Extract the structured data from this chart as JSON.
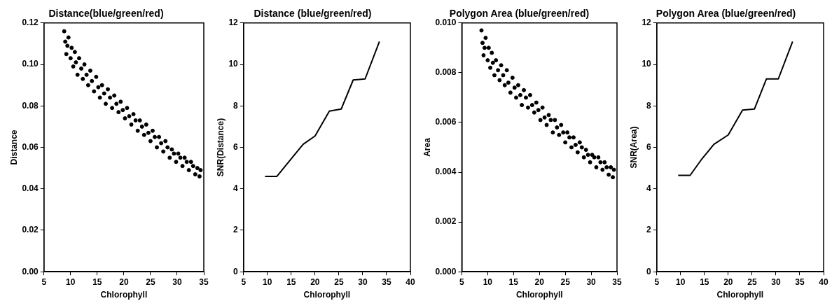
{
  "chart_data": [
    {
      "type": "scatter",
      "title": "Distance(blue/green/red)",
      "xlabel": "Chlorophyll",
      "ylabel": "Distance",
      "color": "#000000",
      "marker": "circle",
      "x": [
        8.8,
        9,
        9.2,
        9.4,
        9.6,
        10,
        10.2,
        10.5,
        10.8,
        11,
        11.3,
        11.6,
        12,
        12.3,
        12.6,
        13,
        13.3,
        13.7,
        14,
        14.4,
        14.8,
        15.2,
        15.5,
        15.9,
        16.3,
        16.6,
        17,
        17.4,
        17.8,
        18.2,
        18.6,
        19,
        19.4,
        19.8,
        20.2,
        20.6,
        21,
        21.4,
        21.8,
        22.2,
        22.6,
        23,
        23.4,
        23.8,
        24.2,
        24.6,
        25,
        25.4,
        25.8,
        26.2,
        26.6,
        27,
        27.4,
        27.8,
        28.2,
        28.6,
        29,
        29.4,
        29.8,
        30.2,
        30.6,
        31,
        31.4,
        31.8,
        32.2,
        32.6,
        33,
        33.4,
        33.8,
        34.2,
        34.4
      ],
      "values": [
        0.116,
        0.111,
        0.105,
        0.109,
        0.113,
        0.103,
        0.108,
        0.099,
        0.106,
        0.101,
        0.095,
        0.103,
        0.098,
        0.093,
        0.1,
        0.095,
        0.09,
        0.097,
        0.092,
        0.087,
        0.094,
        0.089,
        0.084,
        0.09,
        0.086,
        0.081,
        0.088,
        0.084,
        0.079,
        0.085,
        0.081,
        0.077,
        0.082,
        0.078,
        0.074,
        0.079,
        0.075,
        0.071,
        0.076,
        0.073,
        0.068,
        0.073,
        0.07,
        0.066,
        0.071,
        0.067,
        0.063,
        0.068,
        0.065,
        0.06,
        0.065,
        0.062,
        0.058,
        0.063,
        0.06,
        0.055,
        0.059,
        0.057,
        0.053,
        0.057,
        0.055,
        0.051,
        0.055,
        0.053,
        0.049,
        0.053,
        0.051,
        0.047,
        0.05,
        0.046,
        0.049
      ],
      "xlim": [
        5,
        35
      ],
      "xticks": [
        5,
        10,
        15,
        20,
        25,
        30,
        35
      ],
      "ylim": [
        0,
        0.12
      ],
      "yticks": [
        {
          "value": 0,
          "label": "0.00"
        },
        0.02,
        0.04,
        0.06,
        0.08,
        {
          "value": 0.1,
          "label": "0.10"
        },
        {
          "value": 0.12,
          "label": "0.12"
        }
      ]
    },
    {
      "type": "line",
      "title": "Distance (blue/green/red)",
      "xlabel": "Chlorophyll",
      "ylabel": "SNR(Distance)",
      "color": "#000000",
      "marker": "none",
      "line_style": "solid",
      "x": [
        9.5,
        12,
        15,
        17.5,
        20,
        23,
        25.5,
        28,
        30.5,
        33.5
      ],
      "values": [
        4.6,
        4.6,
        5.45,
        6.15,
        6.55,
        7.75,
        7.85,
        9.25,
        9.3,
        11.1
      ],
      "xlim": [
        5,
        40
      ],
      "xticks": [
        5,
        10,
        15,
        20,
        25,
        30,
        35,
        40
      ],
      "ylim": [
        0,
        12
      ],
      "yticks": [
        0,
        2,
        4,
        6,
        8,
        10,
        12
      ]
    },
    {
      "type": "scatter",
      "title": "Polygon Area (blue/green/red)",
      "xlabel": "Chlorophyll",
      "ylabel": "Area",
      "color": "#000000",
      "marker": "circle",
      "x": [
        8.8,
        9,
        9.2,
        9.4,
        9.6,
        10,
        10.2,
        10.5,
        10.8,
        11,
        11.3,
        11.6,
        12,
        12.3,
        12.6,
        13,
        13.3,
        13.7,
        14,
        14.4,
        14.8,
        15.2,
        15.5,
        15.9,
        16.3,
        16.6,
        17,
        17.4,
        17.8,
        18.2,
        18.6,
        19,
        19.4,
        19.8,
        20.2,
        20.6,
        21,
        21.4,
        21.8,
        22.2,
        22.6,
        23,
        23.4,
        23.8,
        24.2,
        24.6,
        25,
        25.4,
        25.8,
        26.2,
        26.6,
        27,
        27.4,
        27.8,
        28.2,
        28.6,
        29,
        29.4,
        29.8,
        30.2,
        30.6,
        31,
        31.4,
        31.8,
        32.2,
        32.6,
        33,
        33.4,
        33.8,
        34.2,
        34.4
      ],
      "values": [
        0.0097,
        0.0092,
        0.0087,
        0.009,
        0.0094,
        0.0085,
        0.009,
        0.0082,
        0.0088,
        0.0084,
        0.0079,
        0.0085,
        0.0081,
        0.0077,
        0.0083,
        0.0079,
        0.0075,
        0.0081,
        0.0076,
        0.0072,
        0.0078,
        0.0074,
        0.007,
        0.0075,
        0.0071,
        0.0067,
        0.0073,
        0.007,
        0.0066,
        0.0071,
        0.0067,
        0.0064,
        0.0068,
        0.0065,
        0.0061,
        0.0066,
        0.0062,
        0.0059,
        0.0063,
        0.0061,
        0.0056,
        0.0061,
        0.0058,
        0.0055,
        0.0059,
        0.0056,
        0.0052,
        0.0056,
        0.0054,
        0.005,
        0.0054,
        0.0051,
        0.0048,
        0.0052,
        0.005,
        0.0046,
        0.0049,
        0.0047,
        0.0044,
        0.0047,
        0.0046,
        0.0042,
        0.0046,
        0.0044,
        0.0041,
        0.0044,
        0.0042,
        0.0039,
        0.0042,
        0.0038,
        0.0041
      ],
      "xlim": [
        5,
        35
      ],
      "xticks": [
        5,
        10,
        15,
        20,
        25,
        30,
        35
      ],
      "ylim": [
        0,
        0.01
      ],
      "yticks": [
        {
          "value": 0,
          "label": "0.000"
        },
        {
          "value": 0.002,
          "label": "0.002"
        },
        {
          "value": 0.004,
          "label": "0.004"
        },
        {
          "value": 0.006,
          "label": "0.006"
        },
        {
          "value": 0.008,
          "label": "0.008"
        },
        {
          "value": 0.01,
          "label": "0.010"
        }
      ]
    },
    {
      "type": "line",
      "title": "Polygon Area (blue/green/red)",
      "xlabel": "Chlorophyll",
      "ylabel": "SNR(Area)",
      "color": "#000000",
      "marker": "none",
      "line_style": "solid",
      "x": [
        9.5,
        12,
        14.5,
        17,
        20,
        23,
        25.5,
        28,
        30.5,
        33.5
      ],
      "values": [
        4.65,
        4.65,
        5.45,
        6.15,
        6.6,
        7.8,
        7.85,
        9.3,
        9.3,
        11.1
      ],
      "xlim": [
        5,
        40
      ],
      "xticks": [
        5,
        10,
        15,
        20,
        25,
        30,
        35,
        40
      ],
      "ylim": [
        0,
        12
      ],
      "yticks": [
        0,
        2,
        4,
        6,
        8,
        10,
        12
      ]
    }
  ]
}
